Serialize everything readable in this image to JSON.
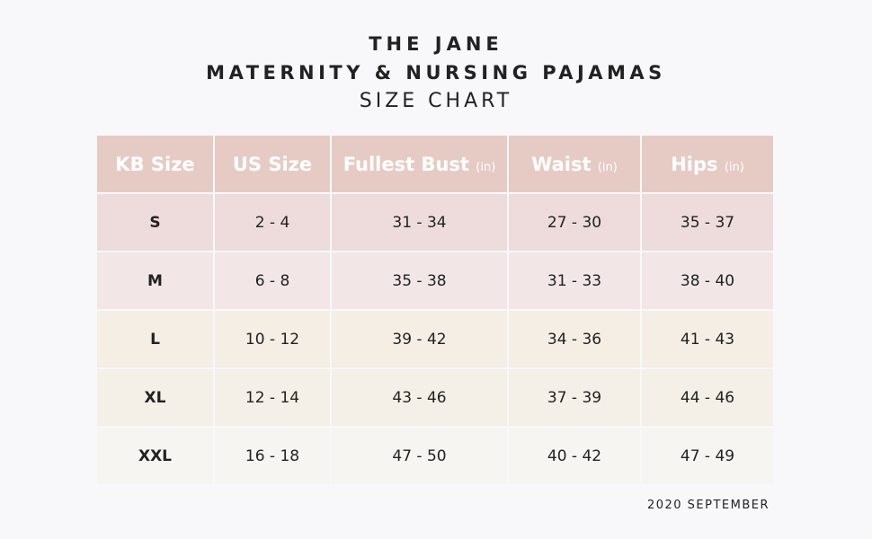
{
  "title": {
    "line1": "THE JANE",
    "line2": "MATERNITY & NURSING PAJAMAS",
    "line3": "SIZE CHART"
  },
  "table": {
    "headers": [
      {
        "label": "KB Size",
        "unit": ""
      },
      {
        "label": "US Size",
        "unit": ""
      },
      {
        "label": "Fullest Bust",
        "unit": "(in)"
      },
      {
        "label": "Waist",
        "unit": "(in)"
      },
      {
        "label": "Hips",
        "unit": "(in)"
      }
    ],
    "rows": [
      {
        "cells": [
          "S",
          "2 - 4",
          "31 - 34",
          "27 - 30",
          "35 - 37"
        ],
        "color": "#eddcdb"
      },
      {
        "cells": [
          "M",
          "6 - 8",
          "35 - 38",
          "31 - 33",
          "38 - 40"
        ],
        "color": "#f2e6e6"
      },
      {
        "cells": [
          "L",
          "10 - 12",
          "39 - 42",
          "34 - 36",
          "41 - 43"
        ],
        "color": "#f4eee5"
      },
      {
        "cells": [
          "XL",
          "12 - 14",
          "43 - 46",
          "37 - 39",
          "44 - 46"
        ],
        "color": "#f4efe7"
      },
      {
        "cells": [
          "XXL",
          "16 - 18",
          "47 - 50",
          "40 - 42",
          "47 - 49"
        ],
        "color": "#f6f5f1"
      }
    ],
    "header_color": "#e6cbc5"
  },
  "footer": "2020 SEPTEMBER"
}
